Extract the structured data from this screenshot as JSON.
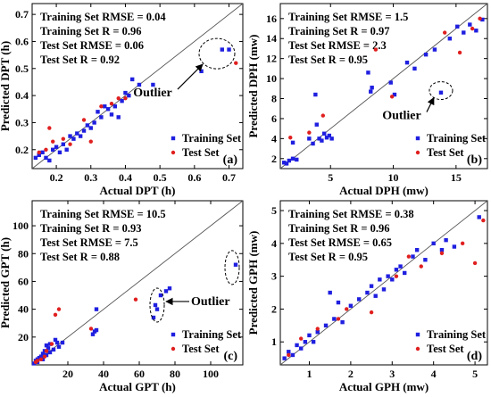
{
  "marker_colors": {
    "training": "#1f1fe0",
    "test": "#e01f1f"
  },
  "chart_data": [
    {
      "type": "scatter",
      "panel": "(a)",
      "xlabel": "Actual DPT (h)",
      "ylabel": "Predicted DPT (h)",
      "xlim": [
        0.13,
        0.74
      ],
      "ylim": [
        0.13,
        0.74
      ],
      "xticks": [
        0.2,
        0.3,
        0.4,
        0.5,
        0.6,
        0.7
      ],
      "yticks": [
        0.2,
        0.3,
        0.4,
        0.5,
        0.6,
        0.7
      ],
      "stats": [
        "Training Set RMSE = 0.04",
        "Training Set R = 0.96",
        "Test Set RMSE = 0.06",
        "Test Set R = 0.92"
      ],
      "legend": [
        "Training Set",
        "Test Set"
      ],
      "legend_position": "bottom-right",
      "annotation": {
        "text": "Outlier",
        "ellipse": [
          0.665,
          0.555
        ]
      },
      "series": [
        {
          "name": "Training Set",
          "color": "#1f1fe0",
          "points": [
            [
              0.14,
              0.17
            ],
            [
              0.15,
              0.18
            ],
            [
              0.16,
              0.19
            ],
            [
              0.17,
              0.17
            ],
            [
              0.18,
              0.16
            ],
            [
              0.19,
              0.2
            ],
            [
              0.2,
              0.21
            ],
            [
              0.21,
              0.19
            ],
            [
              0.22,
              0.22
            ],
            [
              0.23,
              0.2
            ],
            [
              0.24,
              0.25
            ],
            [
              0.25,
              0.24
            ],
            [
              0.26,
              0.26
            ],
            [
              0.27,
              0.25
            ],
            [
              0.28,
              0.27
            ],
            [
              0.29,
              0.29
            ],
            [
              0.3,
              0.28
            ],
            [
              0.31,
              0.3
            ],
            [
              0.32,
              0.34
            ],
            [
              0.33,
              0.32
            ],
            [
              0.34,
              0.36
            ],
            [
              0.35,
              0.35
            ],
            [
              0.36,
              0.33
            ],
            [
              0.37,
              0.36
            ],
            [
              0.38,
              0.32
            ],
            [
              0.39,
              0.38
            ],
            [
              0.4,
              0.41
            ],
            [
              0.41,
              0.4
            ],
            [
              0.42,
              0.46
            ],
            [
              0.44,
              0.44
            ],
            [
              0.48,
              0.44
            ],
            [
              0.62,
              0.49
            ],
            [
              0.68,
              0.57
            ],
            [
              0.7,
              0.57
            ]
          ]
        },
        {
          "name": "Test Set",
          "color": "#e01f1f",
          "points": [
            [
              0.15,
              0.19
            ],
            [
              0.17,
              0.2
            ],
            [
              0.18,
              0.28
            ],
            [
              0.19,
              0.23
            ],
            [
              0.22,
              0.24
            ],
            [
              0.24,
              0.22
            ],
            [
              0.28,
              0.31
            ],
            [
              0.3,
              0.23
            ],
            [
              0.33,
              0.36
            ],
            [
              0.36,
              0.37
            ],
            [
              0.38,
              0.39
            ],
            [
              0.4,
              0.39
            ],
            [
              0.72,
              0.52
            ]
          ]
        }
      ]
    },
    {
      "type": "scatter",
      "panel": "(b)",
      "xlabel": "Actual DPH (mw)",
      "ylabel": "Predicted DPH (mw)",
      "xlim": [
        1,
        17.5
      ],
      "ylim": [
        1,
        17.5
      ],
      "xticks": [
        5,
        10,
        15
      ],
      "yticks": [
        2,
        4,
        6,
        8,
        10,
        12,
        14,
        16
      ],
      "stats": [
        "Training Set RMSE = 1.5",
        "Training Set R = 0.97",
        "Test Set RMSE = 2.3",
        "Test Set R = 0.95"
      ],
      "legend": [
        "Training Set",
        "Test Set"
      ],
      "legend_position": "bottom-right",
      "annotation": {
        "text": "Outlier",
        "ellipse": [
          13.8,
          8.8
        ]
      },
      "series": [
        {
          "name": "Training Set",
          "color": "#1f1fe0",
          "points": [
            [
              1.3,
              1.6
            ],
            [
              1.5,
              1.5
            ],
            [
              1.7,
              1.8
            ],
            [
              2.0,
              2.0
            ],
            [
              2.3,
              1.9
            ],
            [
              2.0,
              3.6
            ],
            [
              3.3,
              4.0
            ],
            [
              3.6,
              3.5
            ],
            [
              3.8,
              8.4
            ],
            [
              3.9,
              5.4
            ],
            [
              4.1,
              4.0
            ],
            [
              4.3,
              3.8
            ],
            [
              4.5,
              4.5
            ],
            [
              4.7,
              4.1
            ],
            [
              4.9,
              4.3
            ],
            [
              5.1,
              4.0
            ],
            [
              8.0,
              10.6
            ],
            [
              8.2,
              8.7
            ],
            [
              8.3,
              9.1
            ],
            [
              9.8,
              9.6
            ],
            [
              10.1,
              8.4
            ],
            [
              11.1,
              11.6
            ],
            [
              11.7,
              11.0
            ],
            [
              12.6,
              12.4
            ],
            [
              13.3,
              12.9
            ],
            [
              13.8,
              8.6
            ],
            [
              14.5,
              14.0
            ],
            [
              15.1,
              15.2
            ],
            [
              15.6,
              14.6
            ],
            [
              16.1,
              15.4
            ],
            [
              16.6,
              14.8
            ],
            [
              17.1,
              15.9
            ]
          ]
        },
        {
          "name": "Test Set",
          "color": "#e01f1f",
          "points": [
            [
              1.8,
              4.1
            ],
            [
              3.3,
              4.6
            ],
            [
              4.4,
              6.3
            ],
            [
              8.6,
              12.9
            ],
            [
              9.9,
              8.2
            ],
            [
              14.1,
              14.6
            ],
            [
              15.3,
              12.6
            ],
            [
              16.3,
              15.0
            ],
            [
              16.9,
              16.0
            ]
          ]
        }
      ]
    },
    {
      "type": "scatter",
      "panel": "(c)",
      "xlabel": "Actual GPT (h)",
      "ylabel": "Predicted GPT (h)",
      "xlim": [
        0,
        118
      ],
      "ylim": [
        0,
        118
      ],
      "xticks": [
        20,
        40,
        60,
        80,
        100
      ],
      "yticks": [
        20,
        40,
        60,
        80,
        100
      ],
      "stats": [
        "Training Set RMSE = 10.5",
        "Training Set R = 0.93",
        "Test Set RMSE = 7.5",
        "Test Set R = 0.88"
      ],
      "legend": [
        "Training Set",
        "Test Set"
      ],
      "legend_position": "bottom-right",
      "annotations": [
        {
          "text": "Outlier",
          "ellipse": [
            70,
            43
          ]
        },
        {
          "ellipse": [
            112,
            70
          ]
        }
      ],
      "series": [
        {
          "name": "Training Set",
          "color": "#1f1fe0",
          "points": [
            [
              1,
              1
            ],
            [
              2,
              3
            ],
            [
              3,
              2
            ],
            [
              3,
              4
            ],
            [
              4,
              5
            ],
            [
              5,
              6
            ],
            [
              6,
              4
            ],
            [
              6,
              8
            ],
            [
              7,
              10
            ],
            [
              8,
              7
            ],
            [
              8,
              14
            ],
            [
              9,
              12
            ],
            [
              10,
              9
            ],
            [
              10,
              15
            ],
            [
              12,
              11
            ],
            [
              13,
              18
            ],
            [
              14,
              16
            ],
            [
              15,
              13
            ],
            [
              17,
              16
            ],
            [
              34,
              22
            ],
            [
              35,
              24
            ],
            [
              36,
              25
            ],
            [
              36,
              40
            ],
            [
              68,
              34
            ],
            [
              69,
              43
            ],
            [
              70,
              40
            ],
            [
              72,
              50
            ],
            [
              75,
              53
            ],
            [
              77,
              55
            ],
            [
              114,
              72
            ]
          ]
        },
        {
          "name": "Test Set",
          "color": "#e01f1f",
          "points": [
            [
              2,
              2
            ],
            [
              3,
              3
            ],
            [
              5,
              4
            ],
            [
              7,
              6
            ],
            [
              8,
              10
            ],
            [
              11,
              15
            ],
            [
              13,
              36
            ],
            [
              15,
              40
            ],
            [
              33,
              26
            ],
            [
              58,
              47
            ]
          ]
        }
      ]
    },
    {
      "type": "scatter",
      "panel": "(d)",
      "xlabel": "Actual GPH (mw)",
      "ylabel": "Predicted GPH (mw)",
      "xlim": [
        0.3,
        5.3
      ],
      "ylim": [
        0.3,
        5.3
      ],
      "xticks": [
        1,
        2,
        3,
        4,
        5
      ],
      "yticks": [
        1,
        2,
        3,
        4,
        5
      ],
      "stats": [
        "Training Set RMSE = 0.38",
        "Training Set R = 0.96",
        "Test Set RMSE = 0.65",
        "Test Set R = 0.95"
      ],
      "legend": [
        "Training Set",
        "Test Set"
      ],
      "legend_position": "bottom-right",
      "series": [
        {
          "name": "Training Set",
          "color": "#1f1fe0",
          "points": [
            [
              0.4,
              0.5
            ],
            [
              0.5,
              0.7
            ],
            [
              0.6,
              0.6
            ],
            [
              0.7,
              0.9
            ],
            [
              0.8,
              0.8
            ],
            [
              0.9,
              1.0
            ],
            [
              1.0,
              1.2
            ],
            [
              1.1,
              1.0
            ],
            [
              1.2,
              1.3
            ],
            [
              1.4,
              1.5
            ],
            [
              1.5,
              2.5
            ],
            [
              1.6,
              1.7
            ],
            [
              1.7,
              2.2
            ],
            [
              1.8,
              1.6
            ],
            [
              2.0,
              2.1
            ],
            [
              2.2,
              2.3
            ],
            [
              2.4,
              2.5
            ],
            [
              2.5,
              2.7
            ],
            [
              2.6,
              2.4
            ],
            [
              2.7,
              2.9
            ],
            [
              2.8,
              2.6
            ],
            [
              2.9,
              3.0
            ],
            [
              3.0,
              2.9
            ],
            [
              3.1,
              3.2
            ],
            [
              3.2,
              3.3
            ],
            [
              3.3,
              3.1
            ],
            [
              3.5,
              3.6
            ],
            [
              3.6,
              3.8
            ],
            [
              3.8,
              3.5
            ],
            [
              4.0,
              4.0
            ],
            [
              4.2,
              3.8
            ],
            [
              4.3,
              4.1
            ],
            [
              4.5,
              3.9
            ],
            [
              5.1,
              4.8
            ]
          ]
        },
        {
          "name": "Test Set",
          "color": "#e01f1f",
          "points": [
            [
              0.5,
              0.6
            ],
            [
              0.8,
              1.1
            ],
            [
              1.2,
              1.4
            ],
            [
              1.7,
              1.7
            ],
            [
              1.9,
              2.0
            ],
            [
              2.5,
              1.9
            ],
            [
              3.1,
              3.0
            ],
            [
              3.4,
              3.6
            ],
            [
              3.7,
              3.3
            ],
            [
              4.2,
              3.7
            ],
            [
              4.7,
              4.0
            ],
            [
              5.0,
              3.4
            ],
            [
              5.2,
              4.7
            ]
          ]
        }
      ]
    }
  ]
}
